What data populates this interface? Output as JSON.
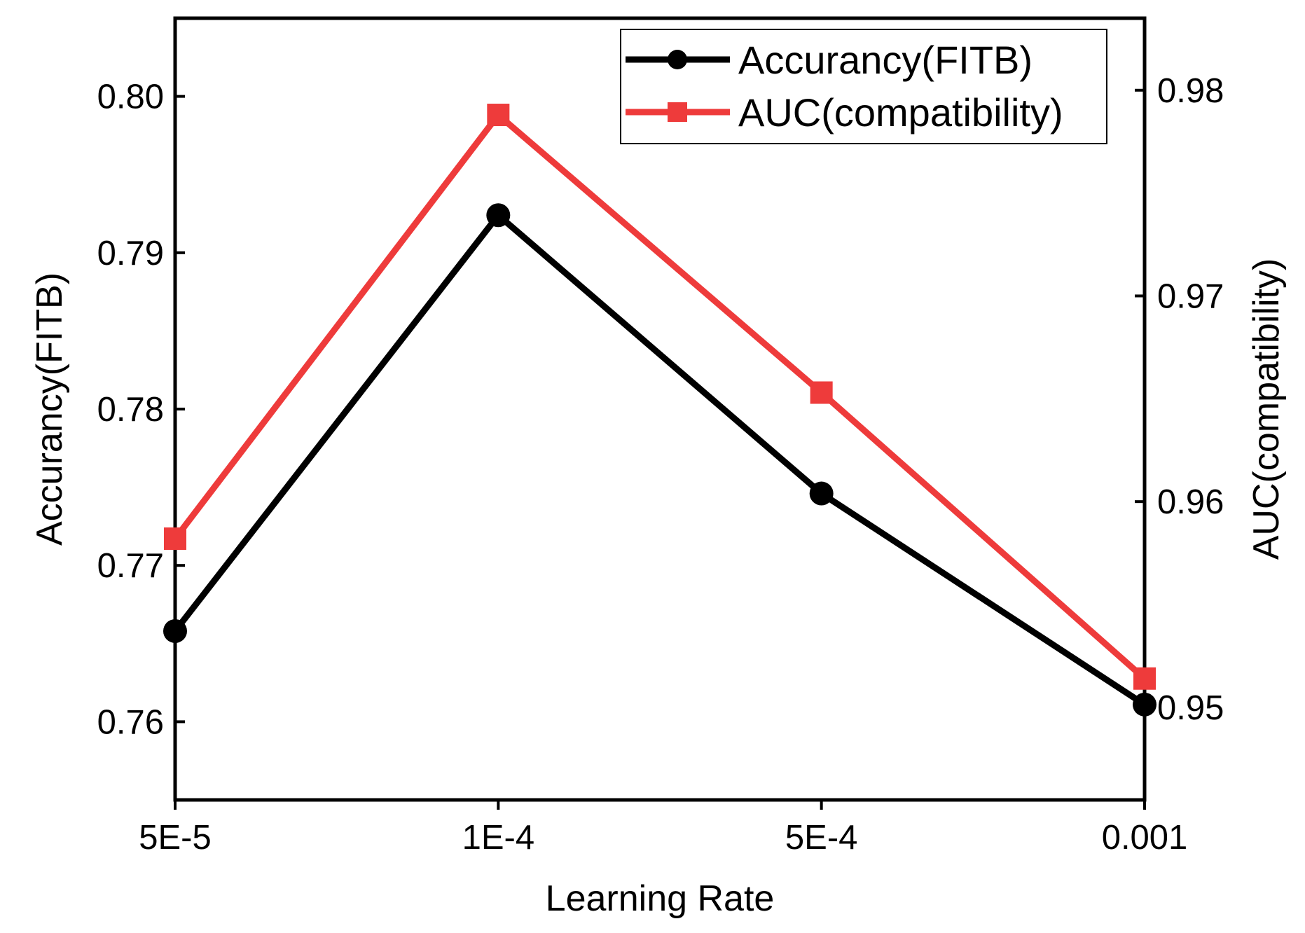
{
  "chart_data": {
    "type": "line",
    "xlabel": "Learning Rate",
    "ylabel": "Accurancy(FITB)",
    "ylabel_right": "AUC(compatibility)",
    "categories": [
      "5E-5",
      "1E-4",
      "5E-4",
      "0.001"
    ],
    "left_axis": {
      "ylim": [
        0.755,
        0.805
      ],
      "ticks": [
        0.76,
        0.77,
        0.78,
        0.79,
        0.8
      ],
      "tick_labels": [
        "0.76",
        "0.77",
        "0.78",
        "0.79",
        "0.80"
      ]
    },
    "right_axis": {
      "ylim": [
        0.9455,
        0.9835
      ],
      "ticks": [
        0.95,
        0.96,
        0.97,
        0.98
      ],
      "tick_labels": [
        "0.95",
        "0.96",
        "0.97",
        "0.98"
      ]
    },
    "series": [
      {
        "name": "Accurancy(FITB)",
        "axis": "left",
        "marker": "circle",
        "color": "#000000",
        "values": [
          0.7658,
          0.7924,
          0.7746,
          0.7611
        ]
      },
      {
        "name": "AUC(compatibility)",
        "axis": "right",
        "marker": "square",
        "color": "#ee3b3b",
        "values": [
          0.9582,
          0.9788,
          0.9653,
          0.9514
        ]
      }
    ],
    "legend": {
      "position": "top-right",
      "entries": [
        "Accurancy(FITB)",
        "AUC(compatibility)"
      ]
    }
  }
}
